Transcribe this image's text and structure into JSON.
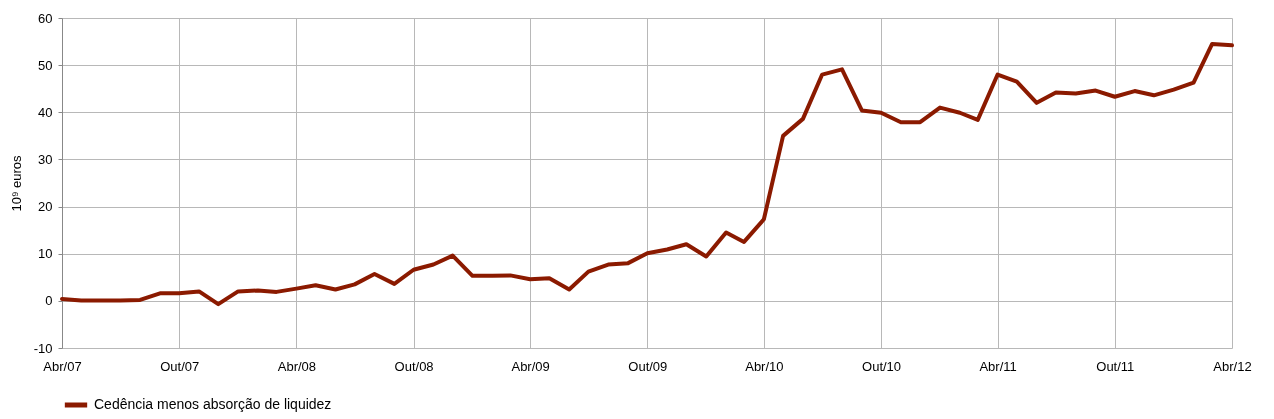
{
  "chart_data": {
    "type": "line",
    "ylabel": "10⁹ euros",
    "x": [
      "2007-04",
      "2007-05",
      "2007-06",
      "2007-07",
      "2007-08",
      "2007-09",
      "2007-10",
      "2007-11",
      "2007-12",
      "2008-01",
      "2008-02",
      "2008-03",
      "2008-04",
      "2008-05",
      "2008-06",
      "2008-07",
      "2008-08",
      "2008-09",
      "2008-10",
      "2008-11",
      "2008-12",
      "2009-01",
      "2009-02",
      "2009-03",
      "2009-04",
      "2009-05",
      "2009-06",
      "2009-07",
      "2009-08",
      "2009-09",
      "2009-10",
      "2009-11",
      "2009-12",
      "2010-01",
      "2010-02",
      "2010-03",
      "2010-04",
      "2010-05",
      "2010-06",
      "2010-07",
      "2010-08",
      "2010-09",
      "2010-10",
      "2010-11",
      "2010-12",
      "2011-01",
      "2011-02",
      "2011-03",
      "2011-04",
      "2011-05",
      "2011-06",
      "2011-07",
      "2011-08",
      "2011-09",
      "2011-10",
      "2011-11",
      "2011-12",
      "2012-01",
      "2012-02",
      "2012-03",
      "2012-04"
    ],
    "series": [
      {
        "name": "Cedência menos absorção de liquidez",
        "color": "#8b1a00",
        "values": [
          0.4,
          0.1,
          0.1,
          0.1,
          0.2,
          1.6,
          1.6,
          2.0,
          -0.7,
          2.0,
          2.2,
          1.9,
          2.6,
          3.3,
          2.4,
          3.5,
          5.7,
          3.6,
          6.6,
          7.7,
          9.6,
          5.3,
          5.3,
          5.4,
          4.6,
          4.8,
          2.4,
          6.2,
          7.7,
          8.0,
          10.1,
          10.9,
          12.0,
          9.4,
          14.5,
          12.5,
          17.3,
          35.0,
          38.6,
          48.0,
          49.1,
          40.4,
          39.9,
          37.9,
          37.9,
          41.0,
          39.9,
          38.4,
          48.0,
          46.5,
          42.0,
          44.2,
          44.0,
          44.6,
          43.3,
          44.5,
          43.6,
          44.8,
          46.3,
          54.5,
          54.2
        ]
      }
    ],
    "xlim": [
      "2007-04",
      "2012-04"
    ],
    "xticks": [
      {
        "value": "2007-04",
        "label": "Abr/07"
      },
      {
        "value": "2007-10",
        "label": "Out/07"
      },
      {
        "value": "2008-04",
        "label": "Abr/08"
      },
      {
        "value": "2008-10",
        "label": "Out/08"
      },
      {
        "value": "2009-04",
        "label": "Abr/09"
      },
      {
        "value": "2009-10",
        "label": "Out/09"
      },
      {
        "value": "2010-04",
        "label": "Abr/10"
      },
      {
        "value": "2010-10",
        "label": "Out/10"
      },
      {
        "value": "2011-04",
        "label": "Abr/11"
      },
      {
        "value": "2011-10",
        "label": "Out/11"
      },
      {
        "value": "2012-04",
        "label": "Abr/12"
      }
    ],
    "ylim": [
      -10,
      60
    ],
    "yticks": [
      -10,
      0,
      10,
      20,
      30,
      40,
      50,
      60
    ],
    "grid": true,
    "legend": "bottom"
  }
}
